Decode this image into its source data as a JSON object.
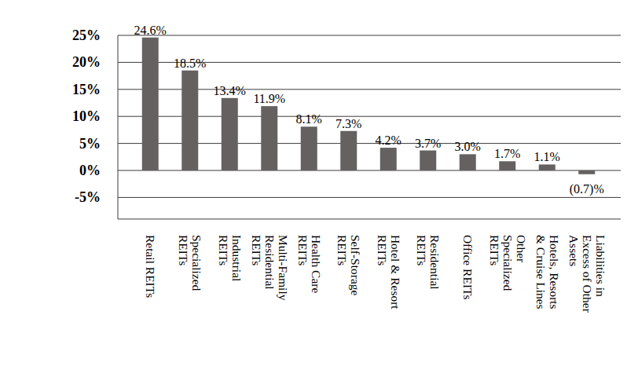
{
  "chart_data": {
    "type": "bar",
    "categories": [
      "Retail REITs",
      "Specialized REITs",
      "Industrial REITs",
      "Multi-Family Residential REITs",
      "Health Care REITs",
      "Self-Storage REITs",
      "Hotel & Resort REITs",
      "Residential REITs",
      "Office REITs",
      "Other Specialized REITs",
      "Hotels, Resorts & Cruise Lines",
      "Liabilities in Excess of Other Assets"
    ],
    "values": [
      24.6,
      18.5,
      13.4,
      11.9,
      8.1,
      7.3,
      4.2,
      3.7,
      3.0,
      1.7,
      1.1,
      -0.7
    ],
    "value_labels": [
      "24.6%",
      "18.5%",
      "13.4%",
      "11.9%",
      "8.1%",
      "7.3%",
      "4.2%",
      "3.7%",
      "3.0%",
      "1.7%",
      "1.1%",
      "(0.7)%"
    ],
    "color": "#656161",
    "ylim": [
      -9,
      25
    ],
    "yticks": [
      {
        "value": -5,
        "label": "-5%"
      },
      {
        "value": 0,
        "label": "0%"
      },
      {
        "value": 5,
        "label": "5%"
      },
      {
        "value": 10,
        "label": "10%"
      },
      {
        "value": 15,
        "label": "15%"
      },
      {
        "value": 20,
        "label": "20%"
      },
      {
        "value": 25,
        "label": "25%"
      }
    ],
    "grid": true,
    "data_labels": true
  }
}
